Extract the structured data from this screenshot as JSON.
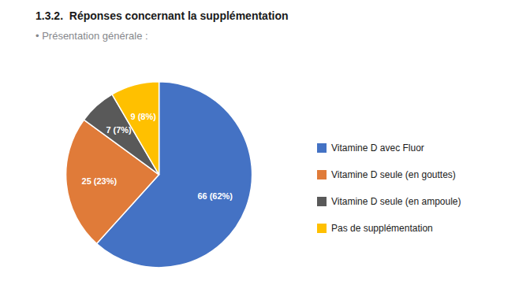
{
  "chart_data": {
    "type": "pie",
    "title": "1.3.2.  Réponses concernant la supplémentation",
    "subtitle": "• Présentation générale :",
    "categories": [
      "Vitamine D avec Fluor",
      "Vitamine D seule (en gouttes)",
      "Vitamine D seule (en ampoule)",
      "Pas de supplémentation"
    ],
    "values": [
      66,
      25,
      7,
      9
    ],
    "value_labels": [
      "66 (62%)",
      "25 (23%)",
      "7 (7%)",
      "9 (8%)"
    ],
    "colors": [
      "#4472C4",
      "#E07B39",
      "#595959",
      "#FFC000"
    ],
    "legend": "right",
    "data_labels": true
  }
}
